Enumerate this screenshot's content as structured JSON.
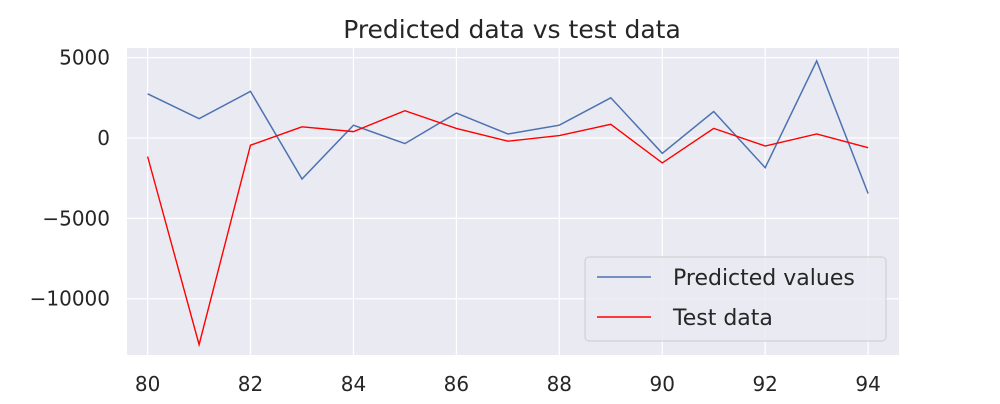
{
  "chart_data": {
    "type": "line",
    "title": "Predicted data vs test data",
    "xlabel": "",
    "ylabel": "",
    "x": [
      80,
      81,
      82,
      83,
      84,
      85,
      86,
      87,
      88,
      89,
      90,
      91,
      92,
      93,
      94
    ],
    "xlim": [
      79.6,
      94.6
    ],
    "ylim": [
      -13500,
      5600
    ],
    "x_ticks": [
      80,
      82,
      84,
      86,
      88,
      90,
      92,
      94
    ],
    "y_ticks": [
      5000,
      0,
      -5000,
      -10000
    ],
    "y_tick_labels": [
      "5000",
      "0",
      "−5000",
      "−10000"
    ],
    "grid": true,
    "legend_position": "lower-right",
    "series": [
      {
        "name": "Predicted values",
        "color": "#4c72b0",
        "values": [
          2750,
          1200,
          2900,
          -2550,
          800,
          -350,
          1550,
          250,
          800,
          2500,
          -950,
          1650,
          -1850,
          4800,
          -3450
        ]
      },
      {
        "name": "Test data",
        "color": "#ff0000",
        "values": [
          -1150,
          -12850,
          -450,
          700,
          400,
          1700,
          600,
          -200,
          150,
          850,
          -1550,
          600,
          -500,
          250,
          -600
        ]
      }
    ]
  }
}
